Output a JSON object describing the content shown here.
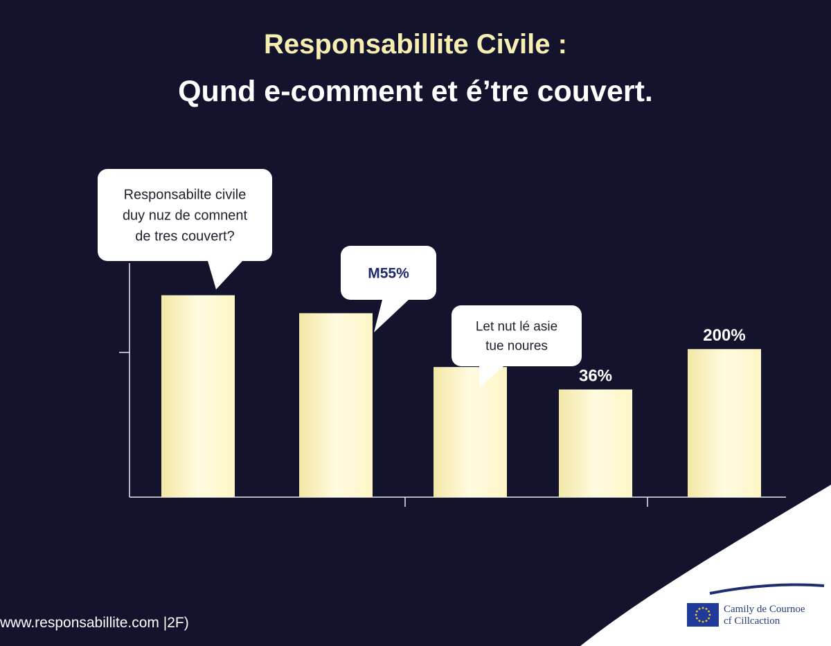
{
  "header": {
    "title": "Responsabillite Civile :",
    "subtitle": "Qund e-comment et é’tre couvert."
  },
  "chart_data": {
    "type": "bar",
    "categories": [
      "",
      "",
      "",
      "",
      ""
    ],
    "values": [
      90,
      82,
      58,
      48,
      66
    ],
    "data_labels": [
      "",
      "",
      "",
      "36%",
      "200%"
    ],
    "callouts": [
      {
        "bar": 0,
        "lines": [
          "Responsabilte civile",
          "duy nuz de comnent",
          "de tres couvert?"
        ]
      },
      {
        "bar": 1,
        "lines": [
          "M55%"
        ]
      },
      {
        "bar": 2,
        "lines": [
          "Let nut lé asie",
          "tue noures"
        ]
      }
    ],
    "ylim": [
      0,
      100
    ],
    "grid": false,
    "colors": {
      "bar": "#fdf6c6",
      "bar_edge": "#f3e7a6",
      "axis": "#e8e8ef"
    }
  },
  "footer": {
    "url": "www.responsabillite.com |2F)"
  },
  "org": {
    "logo_icon": "eu-flag-icon",
    "name_line1": "Camily de Cournoe",
    "name_line2": "cf Cillcaction"
  },
  "colors": {
    "background": "#14132e",
    "title": "#f6efb1",
    "subtitle": "#ffffff",
    "callout_bg": "#ffffff",
    "callout_text": "#1e1e2e",
    "highlight_text": "#1c2a6b",
    "corner": "#ffffff",
    "wave": "#1f2d6e"
  }
}
